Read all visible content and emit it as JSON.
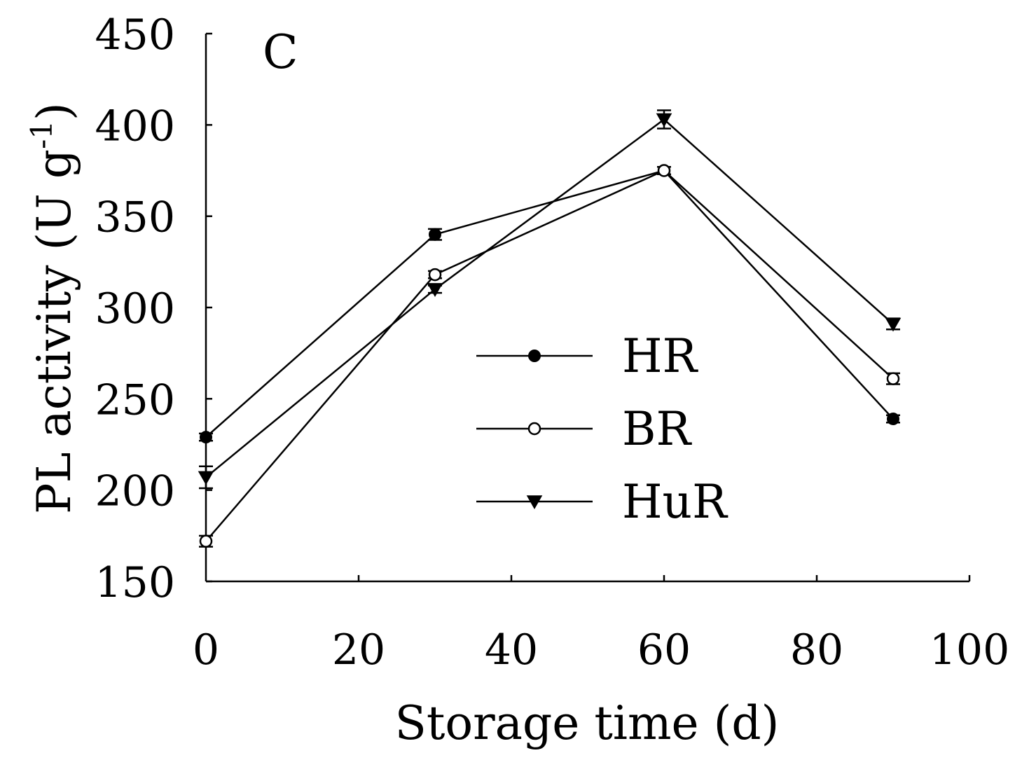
{
  "chart_data": {
    "type": "line",
    "panel_label": "C",
    "xlabel": "Storage time (d)",
    "ylabel_main": "PL activity (U g",
    "ylabel_sup": "-1",
    "ylabel_close": ")",
    "xlim": [
      0,
      100
    ],
    "ylim": [
      150,
      450
    ],
    "xticks": [
      0,
      20,
      40,
      60,
      80,
      100
    ],
    "yticks": [
      150,
      200,
      250,
      300,
      350,
      400,
      450
    ],
    "grid": false,
    "legend_position": "center-right",
    "x": [
      0,
      30,
      60,
      90
    ],
    "series": [
      {
        "name": "HR",
        "marker": "filled-circle",
        "values": [
          229,
          340,
          375,
          239
        ],
        "errors": [
          2,
          3,
          2,
          2
        ]
      },
      {
        "name": "BR",
        "marker": "open-circle",
        "values": [
          172,
          318,
          375,
          261
        ],
        "errors": [
          3,
          2,
          2,
          3
        ]
      },
      {
        "name": "HuR",
        "marker": "filled-triangle-down",
        "values": [
          207,
          310,
          403,
          291
        ],
        "errors": [
          6,
          2,
          5,
          3
        ]
      }
    ]
  }
}
